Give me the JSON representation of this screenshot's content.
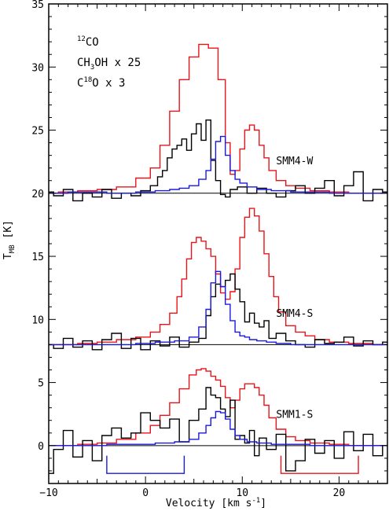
{
  "chart_data": {
    "type": "line",
    "xlabel": {
      "main": "Velocity [km s",
      "sup": "-1",
      "end": "]"
    },
    "ylabel": {
      "main": "T",
      "sub": "MB",
      "end": " [K]"
    },
    "xlim": [
      -10,
      25
    ],
    "ylim": [
      -3,
      35
    ],
    "x_ticks": [
      -10,
      0,
      10,
      20
    ],
    "y_ticks": [
      0,
      5,
      10,
      15,
      20,
      25,
      30,
      35
    ],
    "legend": [
      {
        "sup": "12",
        "text": "CO",
        "color": "#e8141a"
      },
      {
        "pre": "CH",
        "sub": "3",
        "text": "OH x 25",
        "color": "#000000"
      },
      {
        "pre": "C",
        "sup": "18",
        "text": "O x 3",
        "color": "#1a1adb"
      }
    ],
    "spectra": [
      {
        "label": "SMM4-W",
        "baseline": 20,
        "label_x": 13.5,
        "label_y": 22.3,
        "series": [
          {
            "name": "12CO",
            "color": "#e8141a",
            "x": [
              -10,
              -8,
              -6,
              -4,
              -2,
              0,
              1,
              2,
              3,
              4,
              5,
              6,
              7,
              8,
              8.5,
              9,
              9.5,
              10,
              10.5,
              11,
              11.5,
              12,
              12.5,
              13,
              14,
              15,
              16,
              18,
              20,
              22,
              25
            ],
            "y": [
              20.0,
              20.1,
              20.2,
              20.3,
              20.5,
              21.2,
              22.0,
              23.8,
              26.5,
              29.0,
              30.8,
              31.8,
              31.5,
              29.0,
              24.0,
              21.5,
              21.8,
              23.5,
              25.0,
              25.4,
              25.0,
              23.8,
              22.8,
              21.8,
              21.0,
              20.6,
              20.4,
              20.2,
              20.1,
              20.0,
              20.0
            ]
          },
          {
            "name": "CH3OH x 25",
            "color": "#000000",
            "x": [
              -10,
              -9,
              -8,
              -7,
              -6,
              -5,
              -4,
              -3,
              -2,
              -1,
              0,
              1,
              1.5,
              2,
              2.5,
              3,
              3.5,
              4,
              4.5,
              5,
              5.5,
              6,
              6.5,
              7,
              7.5,
              8,
              8.5,
              9,
              10,
              11,
              12,
              13,
              14,
              15,
              16,
              17,
              18,
              19,
              20,
              21,
              22,
              23,
              24,
              25
            ],
            "y": [
              20.1,
              19.8,
              20.3,
              19.4,
              20.0,
              19.7,
              20.3,
              19.6,
              20.0,
              19.8,
              20.2,
              20.6,
              21.3,
              21.8,
              22.8,
              23.5,
              23.8,
              24.3,
              23.4,
              24.7,
              25.5,
              24.2,
              25.8,
              22.6,
              21.0,
              19.9,
              19.7,
              20.3,
              20.5,
              20.0,
              20.4,
              20.0,
              19.7,
              20.2,
              20.6,
              20.0,
              20.4,
              21.0,
              19.8,
              20.6,
              21.7,
              19.4,
              20.3,
              20.1
            ]
          },
          {
            "name": "C18O x 3",
            "color": "#1a1adb",
            "x": [
              -10,
              -6,
              -2,
              0,
              2,
              3,
              4,
              5,
              6,
              6.5,
              7,
              7.5,
              8,
              8.5,
              9,
              9.5,
              10,
              11,
              12,
              14,
              16,
              18,
              20,
              22,
              25
            ],
            "y": [
              20.0,
              20.1,
              20.0,
              20.1,
              20.2,
              20.3,
              20.4,
              20.6,
              21.1,
              21.8,
              22.7,
              24.1,
              24.5,
              23.0,
              21.8,
              21.1,
              20.8,
              20.5,
              20.3,
              20.2,
              20.1,
              20.1,
              20.0,
              20.0,
              20.0
            ]
          }
        ]
      },
      {
        "label": "SMM4-S",
        "baseline": 8,
        "label_x": 13.5,
        "label_y": 10.2,
        "series": [
          {
            "name": "12CO",
            "color": "#e8141a",
            "x": [
              -10,
              -8,
              -6,
              -4,
              -2,
              0,
              1,
              2,
              3,
              3.5,
              4,
              4.5,
              5,
              5.5,
              6,
              6.5,
              7,
              7.5,
              8,
              8.5,
              9,
              9.5,
              10,
              10.5,
              11,
              11.5,
              12,
              12.5,
              13,
              13.5,
              14,
              15,
              16,
              17,
              18,
              20,
              22,
              25
            ],
            "y": [
              8.0,
              8.0,
              8.1,
              8.2,
              8.4,
              8.6,
              9.0,
              9.6,
              10.5,
              11.8,
              13.2,
              14.8,
              16.1,
              16.5,
              16.2,
              15.6,
              15.0,
              13.6,
              12.1,
              11.6,
              12.2,
              14.0,
              16.5,
              18.1,
              18.8,
              18.2,
              17.0,
              15.2,
              13.4,
              11.8,
              10.6,
              9.5,
              9.0,
              8.7,
              8.4,
              8.2,
              8.1,
              8.0
            ]
          },
          {
            "name": "CH3OH x 25",
            "color": "#000000",
            "x": [
              -10,
              -9,
              -8,
              -7,
              -6,
              -5,
              -4,
              -3,
              -2,
              -1,
              0,
              1,
              2,
              3,
              4,
              5,
              6,
              6.5,
              7,
              7.5,
              8,
              8.5,
              9,
              9.5,
              10,
              10.5,
              11,
              11.5,
              12,
              12.5,
              13,
              14,
              15,
              16,
              17,
              18,
              19,
              20,
              21,
              22,
              23,
              24,
              25
            ],
            "y": [
              8.0,
              7.7,
              8.5,
              7.8,
              8.3,
              7.6,
              8.4,
              8.9,
              7.7,
              8.5,
              7.6,
              8.3,
              7.9,
              8.6,
              7.8,
              8.2,
              8.5,
              10.3,
              11.8,
              12.8,
              12.6,
              13.1,
              13.6,
              12.4,
              11.4,
              9.8,
              10.5,
              9.7,
              9.4,
              9.9,
              8.5,
              8.9,
              8.3,
              8.0,
              7.8,
              8.4,
              8.1,
              8.2,
              8.6,
              7.9,
              8.3,
              8.0,
              8.2
            ]
          },
          {
            "name": "C18O x 3",
            "color": "#1a1adb",
            "x": [
              -10,
              -6,
              -2,
              0,
              2,
              4,
              5,
              6,
              6.5,
              7,
              7.5,
              8,
              8.5,
              9,
              9.5,
              10,
              10.5,
              11,
              12,
              13,
              14,
              16,
              18,
              20,
              22,
              25
            ],
            "y": [
              8.0,
              8.0,
              8.0,
              8.1,
              8.2,
              8.3,
              8.6,
              9.4,
              10.8,
              12.9,
              13.8,
              12.6,
              11.2,
              9.9,
              9.0,
              8.7,
              8.6,
              8.4,
              8.3,
              8.2,
              8.1,
              8.0,
              8.0,
              8.0,
              8.0,
              8.0
            ]
          }
        ]
      },
      {
        "label": "SMM1-S",
        "baseline": 0,
        "label_x": 13.5,
        "label_y": 2.2,
        "series": [
          {
            "name": "12CO",
            "color": "#e8141a",
            "x": [
              -10,
              -8,
              -6,
              -4,
              -2,
              0,
              1,
              2,
              3,
              4,
              5,
              5.5,
              6,
              6.5,
              7,
              7.5,
              8,
              8.5,
              9,
              9.5,
              10,
              10.5,
              11,
              11.5,
              12,
              12.5,
              13,
              14,
              15,
              16,
              18,
              20,
              22,
              25
            ],
            "y": [
              0.0,
              0.0,
              0.1,
              0.2,
              0.5,
              1.0,
              1.6,
              2.4,
              3.4,
              4.5,
              5.6,
              6.0,
              6.1,
              5.9,
              5.5,
              5.2,
              4.7,
              3.8,
              3.0,
              3.6,
              4.5,
              4.9,
              4.9,
              4.6,
              4.0,
              3.2,
              2.2,
              1.3,
              0.7,
              0.4,
              0.2,
              0.1,
              0.0,
              0.0
            ]
          },
          {
            "name": "CH3OH x 25",
            "color": "#000000",
            "x": [
              -10,
              -9,
              -8,
              -7,
              -6,
              -5,
              -4,
              -3,
              -2,
              -1,
              0,
              1,
              2,
              3,
              4,
              5,
              6,
              6.5,
              7,
              7.5,
              8,
              8.5,
              9,
              9.5,
              10,
              10.5,
              11,
              11.5,
              12,
              13,
              14,
              15,
              16,
              17,
              18,
              19,
              20,
              21,
              22,
              23,
              24,
              25
            ],
            "y": [
              -2.2,
              -0.3,
              1.2,
              -0.9,
              0.4,
              -1.2,
              0.8,
              1.4,
              0.6,
              1.0,
              2.6,
              2.0,
              1.4,
              2.1,
              0.3,
              2.0,
              2.9,
              4.6,
              4.0,
              3.8,
              2.9,
              2.3,
              3.6,
              0.5,
              0.8,
              0.2,
              1.2,
              -0.8,
              0.6,
              -0.3,
              0.9,
              -2.0,
              -1.2,
              0.5,
              -0.6,
              0.4,
              -1.0,
              1.1,
              -0.4,
              0.9,
              -0.8,
              0.0
            ]
          },
          {
            "name": "C18O x 3",
            "color": "#1a1adb",
            "x": [
              -10,
              -6,
              -2,
              0,
              2,
              4,
              5,
              6,
              6.5,
              7,
              7.5,
              8,
              8.5,
              9,
              9.5,
              10,
              11,
              12,
              14,
              16,
              18,
              20,
              22,
              25
            ],
            "y": [
              0.0,
              0.0,
              0.1,
              0.1,
              0.2,
              0.3,
              0.5,
              1.0,
              1.6,
              2.2,
              2.7,
              2.6,
              2.1,
              1.3,
              0.8,
              0.5,
              0.3,
              0.2,
              0.1,
              0.1,
              0.0,
              0.0,
              0.0,
              0.0
            ]
          }
        ]
      }
    ],
    "integration_ranges": [
      {
        "name": "blue-range",
        "color": "#1a1adb",
        "x": [
          -4,
          4
        ],
        "y": -2.2,
        "top": -0.8
      },
      {
        "name": "red-range",
        "color": "#e8141a",
        "x": [
          14,
          22
        ],
        "y": -2.2,
        "top": -0.8
      }
    ]
  }
}
